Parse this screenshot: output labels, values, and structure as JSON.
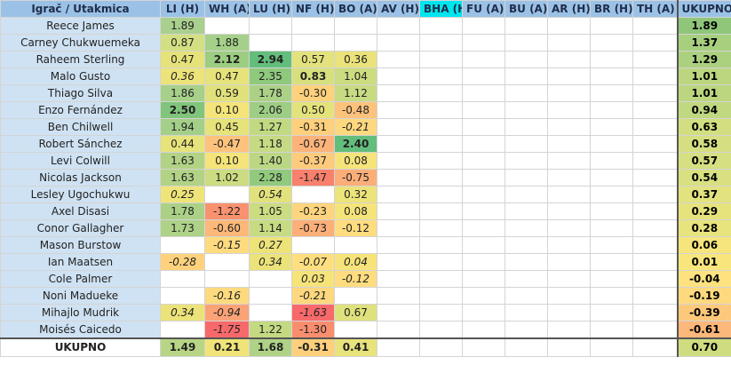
{
  "colors": {
    "header_bg": "#9bc2e6",
    "highlight_header": "#00e5ee",
    "name_bg": "#cfe2f3"
  },
  "headers": [
    "Igrač / Utakmica",
    "LI (H)",
    "WH (A)",
    "LU (H)",
    "NF (H)",
    "BO (A)",
    "AV (H)",
    "BHA (H)",
    "FU (A)",
    "BU (A)",
    "AR (H)",
    "BR (H)",
    "TH (A)",
    "UKUPNO"
  ],
  "highlight_header_index": 7,
  "rows": [
    {
      "name": "Reece James",
      "cells": [
        {
          "v": "1.89",
          "bg": "#a9d08e"
        },
        null,
        null,
        null,
        null,
        null,
        null,
        null,
        null,
        null,
        null,
        null
      ],
      "total": {
        "v": "1.89",
        "bg": "#8fc67a"
      }
    },
    {
      "name": "Carney Chukwuemeka",
      "cells": [
        {
          "v": "0.87",
          "bg": "#d2df82"
        },
        {
          "v": "1.88",
          "bg": "#a5d08a"
        },
        null,
        null,
        null,
        null,
        null,
        null,
        null,
        null,
        null,
        null
      ],
      "total": {
        "v": "1.37",
        "bg": "#a6cf7e"
      }
    },
    {
      "name": "Raheem Sterling",
      "cells": [
        {
          "v": "0.47",
          "bg": "#e5e27a"
        },
        {
          "v": "2.12",
          "bg": "#9ccd80",
          "b": true
        },
        {
          "v": "2.94",
          "bg": "#63be7b",
          "b": true
        },
        {
          "v": "0.57",
          "bg": "#e3e27c"
        },
        {
          "v": "0.36",
          "bg": "#eae27a"
        },
        null,
        null,
        null,
        null,
        null,
        null,
        null
      ],
      "total": {
        "v": "1.29",
        "bg": "#acd17e"
      }
    },
    {
      "name": "Malo Gusto",
      "cells": [
        {
          "v": "0.36",
          "bg": "#ece37a",
          "i": true
        },
        {
          "v": "0.47",
          "bg": "#e6e37b"
        },
        {
          "v": "2.35",
          "bg": "#8ec97c"
        },
        {
          "v": "0.83",
          "bg": "#d8e07e",
          "b": true
        },
        {
          "v": "1.04",
          "bg": "#ccdc80"
        },
        null,
        null,
        null,
        null,
        null,
        null,
        null
      ],
      "total": {
        "v": "1.01",
        "bg": "#bcd67f"
      }
    },
    {
      "name": "Thiago Silva",
      "cells": [
        {
          "v": "1.86",
          "bg": "#a7d08a"
        },
        {
          "v": "0.59",
          "bg": "#e1e17c"
        },
        {
          "v": "1.78",
          "bg": "#abd187"
        },
        {
          "v": "-0.30",
          "bg": "#fed17c"
        },
        {
          "v": "1.12",
          "bg": "#c8db82"
        },
        null,
        null,
        null,
        null,
        null,
        null,
        null
      ],
      "total": {
        "v": "1.01",
        "bg": "#bcd67f"
      }
    },
    {
      "name": "Enzo Fernández",
      "cells": [
        {
          "v": "2.50",
          "bg": "#80c57b",
          "b": true
        },
        {
          "v": "0.10",
          "bg": "#f4e479"
        },
        {
          "v": "2.06",
          "bg": "#9ecd84"
        },
        {
          "v": "0.50",
          "bg": "#e4e27b"
        },
        {
          "v": "-0.48",
          "bg": "#fdc27c"
        },
        null,
        null,
        null,
        null,
        null,
        null,
        null
      ],
      "total": {
        "v": "0.94",
        "bg": "#c0d880"
      }
    },
    {
      "name": "Ben Chilwell",
      "cells": [
        {
          "v": "1.94",
          "bg": "#a4cf88"
        },
        {
          "v": "0.45",
          "bg": "#e6e37b"
        },
        {
          "v": "1.27",
          "bg": "#c1da82"
        },
        {
          "v": "-0.31",
          "bg": "#fed07c"
        },
        {
          "v": "-0.21",
          "bg": "#fed87e",
          "i": true
        },
        null,
        null,
        null,
        null,
        null,
        null,
        null
      ],
      "total": {
        "v": "0.63",
        "bg": "#d3de80"
      }
    },
    {
      "name": "Robert Sánchez",
      "cells": [
        {
          "v": "0.44",
          "bg": "#e7e37b"
        },
        {
          "v": "-0.47",
          "bg": "#fdc27c"
        },
        {
          "v": "1.18",
          "bg": "#c5da82"
        },
        {
          "v": "-0.67",
          "bg": "#fcb37a"
        },
        {
          "v": "2.40",
          "bg": "#63be7b",
          "b": true
        },
        null,
        null,
        null,
        null,
        null,
        null,
        null
      ],
      "total": {
        "v": "0.58",
        "bg": "#d5df81"
      }
    },
    {
      "name": "Levi Colwill",
      "cells": [
        {
          "v": "1.63",
          "bg": "#b2d386"
        },
        {
          "v": "0.10",
          "bg": "#f4e479"
        },
        {
          "v": "1.40",
          "bg": "#bbd784"
        },
        {
          "v": "-0.37",
          "bg": "#fecb7c"
        },
        {
          "v": "0.08",
          "bg": "#f5e47a"
        },
        null,
        null,
        null,
        null,
        null,
        null,
        null
      ],
      "total": {
        "v": "0.57",
        "bg": "#d6df81"
      }
    },
    {
      "name": "Nicolas Jackson",
      "cells": [
        {
          "v": "1.63",
          "bg": "#b2d386"
        },
        {
          "v": "1.02",
          "bg": "#ccdc80"
        },
        {
          "v": "2.28",
          "bg": "#91ca7d"
        },
        {
          "v": "-1.47",
          "bg": "#f8806c"
        },
        {
          "v": "-0.75",
          "bg": "#fcae79"
        },
        null,
        null,
        null,
        null,
        null,
        null,
        null
      ],
      "total": {
        "v": "0.54",
        "bg": "#d8e081"
      }
    },
    {
      "name": "Lesley Ugochukwu",
      "cells": [
        {
          "v": "0.25",
          "bg": "#efe479",
          "i": true
        },
        null,
        {
          "v": "0.54",
          "bg": "#e2e27c",
          "i": true
        },
        null,
        {
          "v": "0.32",
          "bg": "#ece37a"
        },
        null,
        null,
        null,
        null,
        null,
        null,
        null
      ],
      "total": {
        "v": "0.37",
        "bg": "#e2e27e"
      }
    },
    {
      "name": "Axel Disasi",
      "cells": [
        {
          "v": "1.78",
          "bg": "#abd187"
        },
        {
          "v": "-1.22",
          "bg": "#f9926f"
        },
        {
          "v": "1.05",
          "bg": "#cbdc81"
        },
        {
          "v": "-0.23",
          "bg": "#fed57e"
        },
        {
          "v": "0.08",
          "bg": "#f5e47a"
        },
        null,
        null,
        null,
        null,
        null,
        null,
        null
      ],
      "total": {
        "v": "0.29",
        "bg": "#e6e37d"
      }
    },
    {
      "name": "Conor Gallagher",
      "cells": [
        {
          "v": "1.73",
          "bg": "#aed287"
        },
        {
          "v": "-0.60",
          "bg": "#fcb879"
        },
        {
          "v": "1.14",
          "bg": "#c7db82"
        },
        {
          "v": "-0.73",
          "bg": "#fcaf79"
        },
        {
          "v": "-0.12",
          "bg": "#fedc7f"
        },
        null,
        null,
        null,
        null,
        null,
        null,
        null
      ],
      "total": {
        "v": "0.28",
        "bg": "#e7e37d"
      }
    },
    {
      "name": "Mason Burstow",
      "cells": [
        null,
        {
          "v": "-0.15",
          "bg": "#fedb7f",
          "i": true
        },
        {
          "v": "0.27",
          "bg": "#eee379",
          "i": true
        },
        null,
        null,
        null,
        null,
        null,
        null,
        null,
        null,
        null
      ],
      "total": {
        "v": "0.06",
        "bg": "#f5e57c"
      }
    },
    {
      "name": "Ian Maatsen",
      "cells": [
        {
          "v": "-0.28",
          "bg": "#fed27d",
          "i": true
        },
        null,
        {
          "v": "0.34",
          "bg": "#ebe37a",
          "i": true
        },
        {
          "v": "-0.07",
          "bg": "#fedf80",
          "i": true
        },
        {
          "v": "0.04",
          "bg": "#f6e47a",
          "i": true
        },
        null,
        null,
        null,
        null,
        null,
        null,
        null
      ],
      "total": {
        "v": "0.01",
        "bg": "#f8e67d"
      }
    },
    {
      "name": "Cole Palmer",
      "cells": [
        null,
        null,
        null,
        {
          "v": "0.03",
          "bg": "#f6e47a",
          "i": true
        },
        {
          "v": "-0.12",
          "bg": "#fedc7f",
          "i": true
        },
        null,
        null,
        null,
        null,
        null,
        null,
        null
      ],
      "total": {
        "v": "-0.04",
        "bg": "#fde27f"
      }
    },
    {
      "name": "Noni Madueke",
      "cells": [
        null,
        {
          "v": "-0.16",
          "bg": "#feda7f",
          "i": true
        },
        null,
        {
          "v": "-0.21",
          "bg": "#fed77e",
          "i": true
        },
        null,
        null,
        null,
        null,
        null,
        null,
        null,
        null
      ],
      "total": {
        "v": "-0.19",
        "bg": "#fed97f"
      }
    },
    {
      "name": "Mihajlo Mudrik",
      "cells": [
        {
          "v": "0.34",
          "bg": "#ebe37a",
          "i": true
        },
        {
          "v": "-0.94",
          "bg": "#fba277",
          "i": true
        },
        null,
        {
          "v": "-1.63",
          "bg": "#f8696b",
          "i": true
        },
        {
          "v": "0.67",
          "bg": "#dfe17c"
        },
        null,
        null,
        null,
        null,
        null,
        null,
        null
      ],
      "total": {
        "v": "-0.39",
        "bg": "#fcc97c"
      }
    },
    {
      "name": "Moisés Caicedo",
      "cells": [
        null,
        {
          "v": "-1.75",
          "bg": "#f8696b",
          "i": true
        },
        {
          "v": "1.22",
          "bg": "#c3da82"
        },
        {
          "v": "-1.30",
          "bg": "#f98e6f"
        },
        null,
        null,
        null,
        null,
        null,
        null,
        null,
        null
      ],
      "total": {
        "v": "-0.61",
        "bg": "#fcb77a"
      }
    }
  ],
  "footer": {
    "label": "UKUPNO",
    "cells": [
      {
        "v": "1.49",
        "bg": "#b8d586"
      },
      {
        "v": "0.21",
        "bg": "#f0e479"
      },
      {
        "v": "1.68",
        "bg": "#b0d286"
      },
      {
        "v": "-0.31",
        "bg": "#fed07c"
      },
      {
        "v": "0.41",
        "bg": "#e8e37b"
      },
      null,
      null,
      null,
      null,
      null,
      null,
      null
    ],
    "total": {
      "v": "0.70",
      "bg": "#cfdd80"
    }
  }
}
